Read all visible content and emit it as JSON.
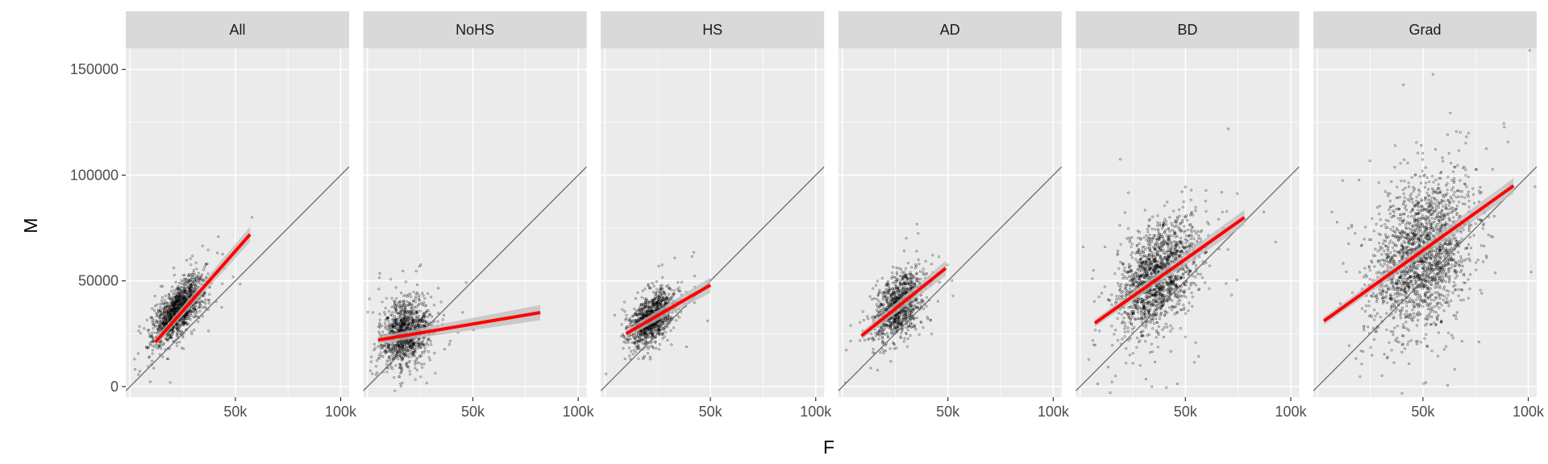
{
  "chart_data": {
    "type": "scatter",
    "title": "",
    "xlabel": "F",
    "ylabel": "M",
    "xlim": [
      -2000,
      104000
    ],
    "ylim": [
      -5000,
      160000
    ],
    "x_ticks": [
      50000,
      100000
    ],
    "x_tick_labels": [
      "50k",
      "100k"
    ],
    "y_ticks": [
      0,
      50000,
      100000,
      150000
    ],
    "y_tick_labels": [
      "0",
      "50000",
      "100000",
      "150000"
    ],
    "grid": true,
    "legend": "none",
    "reference_line": "y = x",
    "colors": {
      "panel_bg": "#ebebeb",
      "strip_bg": "#d9d9d9",
      "grid": "#ffffff",
      "points": "#000000",
      "fit": "#ff0000",
      "band": "#bdbdbd",
      "identity": "#6b6b6b"
    },
    "panels": [
      {
        "label": "All",
        "fit": {
          "x": [
            12000,
            57000
          ],
          "y": [
            21000,
            72000
          ]
        },
        "cloud": {
          "cx": 23000,
          "cy": 36000,
          "sx": 6000,
          "sy": 8000,
          "rho": 0.7,
          "n": 1300
        }
      },
      {
        "label": "NoHS",
        "fit": {
          "x": [
            5000,
            82000
          ],
          "y": [
            22000,
            35000
          ]
        },
        "cloud": {
          "cx": 18000,
          "cy": 25000,
          "sx": 5500,
          "sy": 7500,
          "rho": 0.2,
          "n": 1100
        }
      },
      {
        "label": "HS",
        "fit": {
          "x": [
            10000,
            50000
          ],
          "y": [
            25000,
            48000
          ]
        },
        "cloud": {
          "cx": 22000,
          "cy": 32000,
          "sx": 5500,
          "sy": 6500,
          "rho": 0.55,
          "n": 1100
        }
      },
      {
        "label": "AD",
        "fit": {
          "x": [
            9000,
            49000
          ],
          "y": [
            24000,
            56000
          ]
        },
        "cloud": {
          "cx": 27000,
          "cy": 38000,
          "sx": 6000,
          "sy": 8000,
          "rho": 0.5,
          "n": 1000
        }
      },
      {
        "label": "BD",
        "fit": {
          "x": [
            7000,
            78000
          ],
          "y": [
            30000,
            80000
          ]
        },
        "cloud": {
          "cx": 37000,
          "cy": 52000,
          "sx": 9000,
          "sy": 13000,
          "rho": 0.45,
          "n": 1600
        }
      },
      {
        "label": "Grad",
        "fit": {
          "x": [
            3000,
            93000
          ],
          "y": [
            31000,
            95000
          ]
        },
        "cloud": {
          "cx": 50000,
          "cy": 62000,
          "sx": 12000,
          "sy": 18000,
          "rho": 0.35,
          "n": 1900
        }
      }
    ]
  }
}
